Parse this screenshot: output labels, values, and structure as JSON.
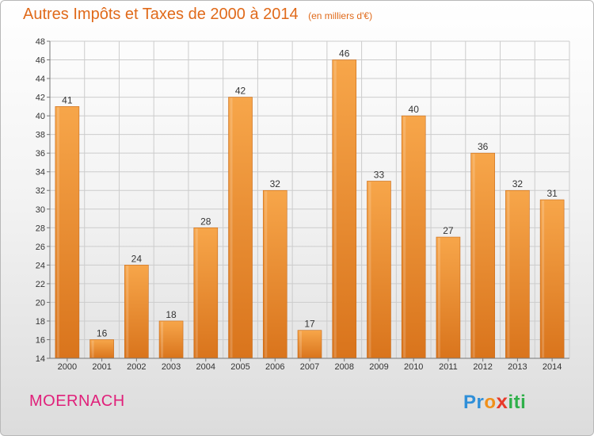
{
  "title": "Autres Impôts et Taxes de 2000 à 2014",
  "unit": "(en milliers d'€)",
  "commune": "MOERNACH",
  "logo": {
    "letters": [
      "P",
      "r",
      "o",
      "x",
      "i",
      "t",
      "i"
    ],
    "colors": [
      "#2f8fd8",
      "#2f8fd8",
      "#f0901a",
      "#e83a2a",
      "#2fb04a",
      "#2fb04a",
      "#2fb04a"
    ]
  },
  "colors": {
    "bar": "#f39a3c",
    "bar_dark": "#d9741c",
    "title": "#e06a1a",
    "commune": "#e0207a",
    "grid": "#cccccc"
  },
  "chart_data": {
    "type": "bar",
    "categories": [
      "2000",
      "2001",
      "2002",
      "2003",
      "2004",
      "2005",
      "2006",
      "2007",
      "2008",
      "2009",
      "2010",
      "2011",
      "2012",
      "2013",
      "2014"
    ],
    "values": [
      41,
      16,
      24,
      18,
      28,
      42,
      32,
      17,
      46,
      33,
      40,
      27,
      36,
      32,
      31
    ],
    "ylim": [
      14,
      48
    ],
    "yticks": [
      14,
      16,
      18,
      20,
      22,
      24,
      26,
      28,
      30,
      32,
      34,
      36,
      38,
      40,
      42,
      44,
      46,
      48
    ],
    "grid": true,
    "data_labels": true
  }
}
